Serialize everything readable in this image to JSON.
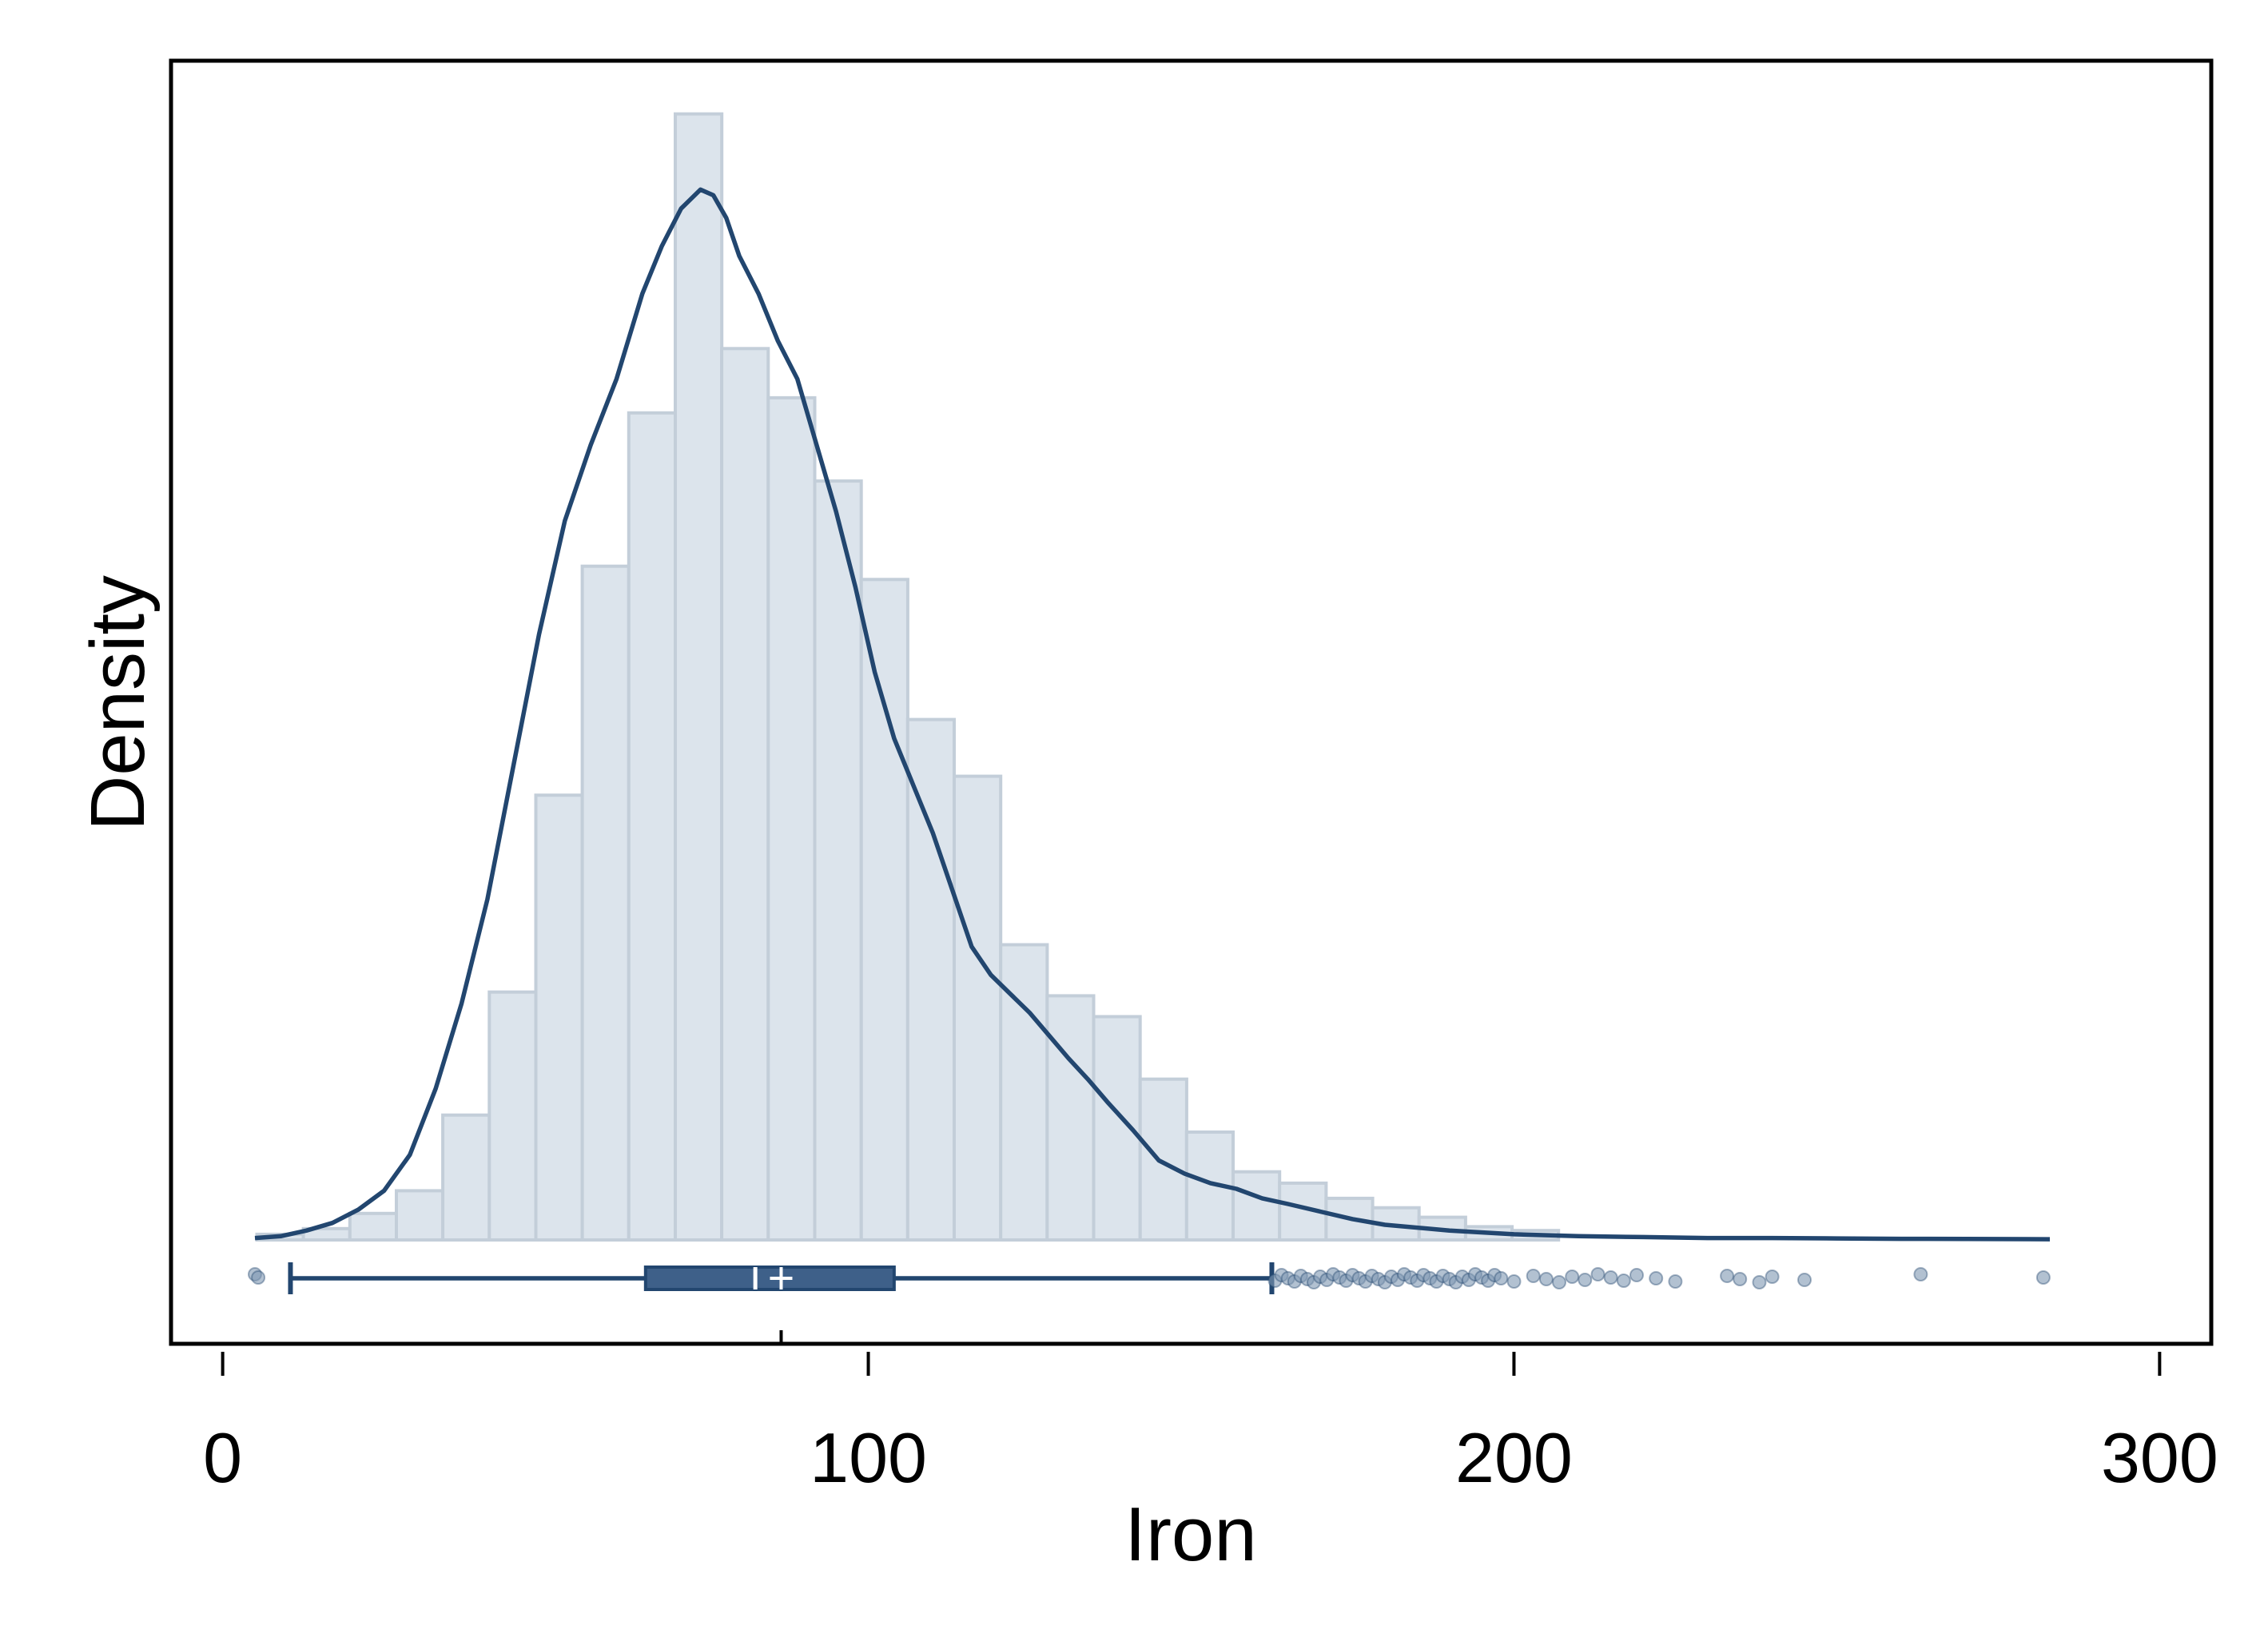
{
  "chart_data": {
    "type": "histogram",
    "title": "",
    "xlabel": "Iron",
    "ylabel": "Density",
    "xlim": [
      -8,
      308
    ],
    "ylim": [
      0,
      1.0
    ],
    "x_ticks": [
      0,
      100,
      200,
      300
    ],
    "x_tick_labels": [
      "0",
      "100",
      "200",
      "300"
    ],
    "y_ticks_shown": false,
    "grid": false,
    "legend": "none",
    "colors": {
      "bar_fill": "#dce4ec",
      "bar_edge": "#c3ced9",
      "line": "#22466f",
      "box_fill": "#3e6089",
      "outlier": "#7e97b2",
      "frame": "#000000"
    },
    "histogram": {
      "bin_width": 7.2,
      "bins": [
        {
          "x0": 5.3,
          "height": 0.003
        },
        {
          "x0": 12.5,
          "height": 0.006
        },
        {
          "x0": 19.7,
          "height": 0.014
        },
        {
          "x0": 26.9,
          "height": 0.026
        },
        {
          "x0": 34.1,
          "height": 0.066
        },
        {
          "x0": 41.3,
          "height": 0.131
        },
        {
          "x0": 48.5,
          "height": 0.235
        },
        {
          "x0": 55.7,
          "height": 0.356
        },
        {
          "x0": 62.9,
          "height": 0.437
        },
        {
          "x0": 70.1,
          "height": 0.595
        },
        {
          "x0": 77.3,
          "height": 0.471
        },
        {
          "x0": 84.5,
          "height": 0.445
        },
        {
          "x0": 91.7,
          "height": 0.401
        },
        {
          "x0": 98.9,
          "height": 0.349
        },
        {
          "x0": 106.1,
          "height": 0.275
        },
        {
          "x0": 113.3,
          "height": 0.245
        },
        {
          "x0": 120.5,
          "height": 0.156
        },
        {
          "x0": 127.7,
          "height": 0.129
        },
        {
          "x0": 134.9,
          "height": 0.118
        },
        {
          "x0": 142.1,
          "height": 0.085
        },
        {
          "x0": 149.3,
          "height": 0.057
        },
        {
          "x0": 156.5,
          "height": 0.036
        },
        {
          "x0": 163.7,
          "height": 0.03
        },
        {
          "x0": 170.9,
          "height": 0.022
        },
        {
          "x0": 178.1,
          "height": 0.017
        },
        {
          "x0": 185.3,
          "height": 0.012
        },
        {
          "x0": 192.5,
          "height": 0.007
        },
        {
          "x0": 199.7,
          "height": 0.005
        }
      ]
    },
    "density_curve": {
      "x": [
        5,
        9,
        13,
        17,
        21,
        25,
        29,
        33,
        37,
        41,
        45,
        49,
        53,
        57,
        61,
        65,
        68,
        71,
        74,
        76,
        78,
        80,
        83,
        86,
        89,
        92,
        95,
        98,
        101,
        104,
        107,
        110,
        113,
        116,
        119,
        122,
        125,
        128,
        131,
        134,
        137,
        141,
        145,
        149,
        153,
        157,
        161,
        165,
        170,
        175,
        180,
        190,
        200,
        210,
        220,
        230,
        240,
        250,
        260,
        270,
        283
      ],
      "y": [
        0.001,
        0.002,
        0.005,
        0.009,
        0.016,
        0.026,
        0.045,
        0.08,
        0.125,
        0.18,
        0.25,
        0.32,
        0.38,
        0.42,
        0.455,
        0.5,
        0.525,
        0.545,
        0.555,
        0.552,
        0.54,
        0.52,
        0.5,
        0.475,
        0.455,
        0.42,
        0.385,
        0.345,
        0.3,
        0.265,
        0.24,
        0.215,
        0.185,
        0.155,
        0.14,
        0.13,
        0.12,
        0.108,
        0.096,
        0.085,
        0.073,
        0.058,
        0.042,
        0.035,
        0.03,
        0.027,
        0.022,
        0.019,
        0.015,
        0.011,
        0.008,
        0.005,
        0.003,
        0.002,
        0.0015,
        0.001,
        0.001,
        0.0008,
        0.0006,
        0.0005,
        0.0004
      ]
    },
    "boxplot": {
      "whisker_low": 10.5,
      "q1": 65.5,
      "median": 82.5,
      "mean": 86.5,
      "q3": 104,
      "whisker_high": 162.5,
      "mean_marker": 86.5,
      "outliers": [
        5,
        5.5,
        163,
        164,
        165,
        166,
        167,
        168,
        169,
        170,
        171,
        172,
        173,
        174,
        175,
        176,
        177,
        178,
        179,
        180,
        181,
        182,
        183,
        184,
        185,
        186,
        187,
        188,
        189,
        190,
        191,
        192,
        193,
        194,
        195,
        196,
        197,
        198,
        200,
        203,
        205,
        207,
        209,
        211,
        213,
        215,
        217,
        219,
        222,
        225,
        233,
        235,
        238,
        240,
        245,
        263,
        282
      ]
    }
  }
}
